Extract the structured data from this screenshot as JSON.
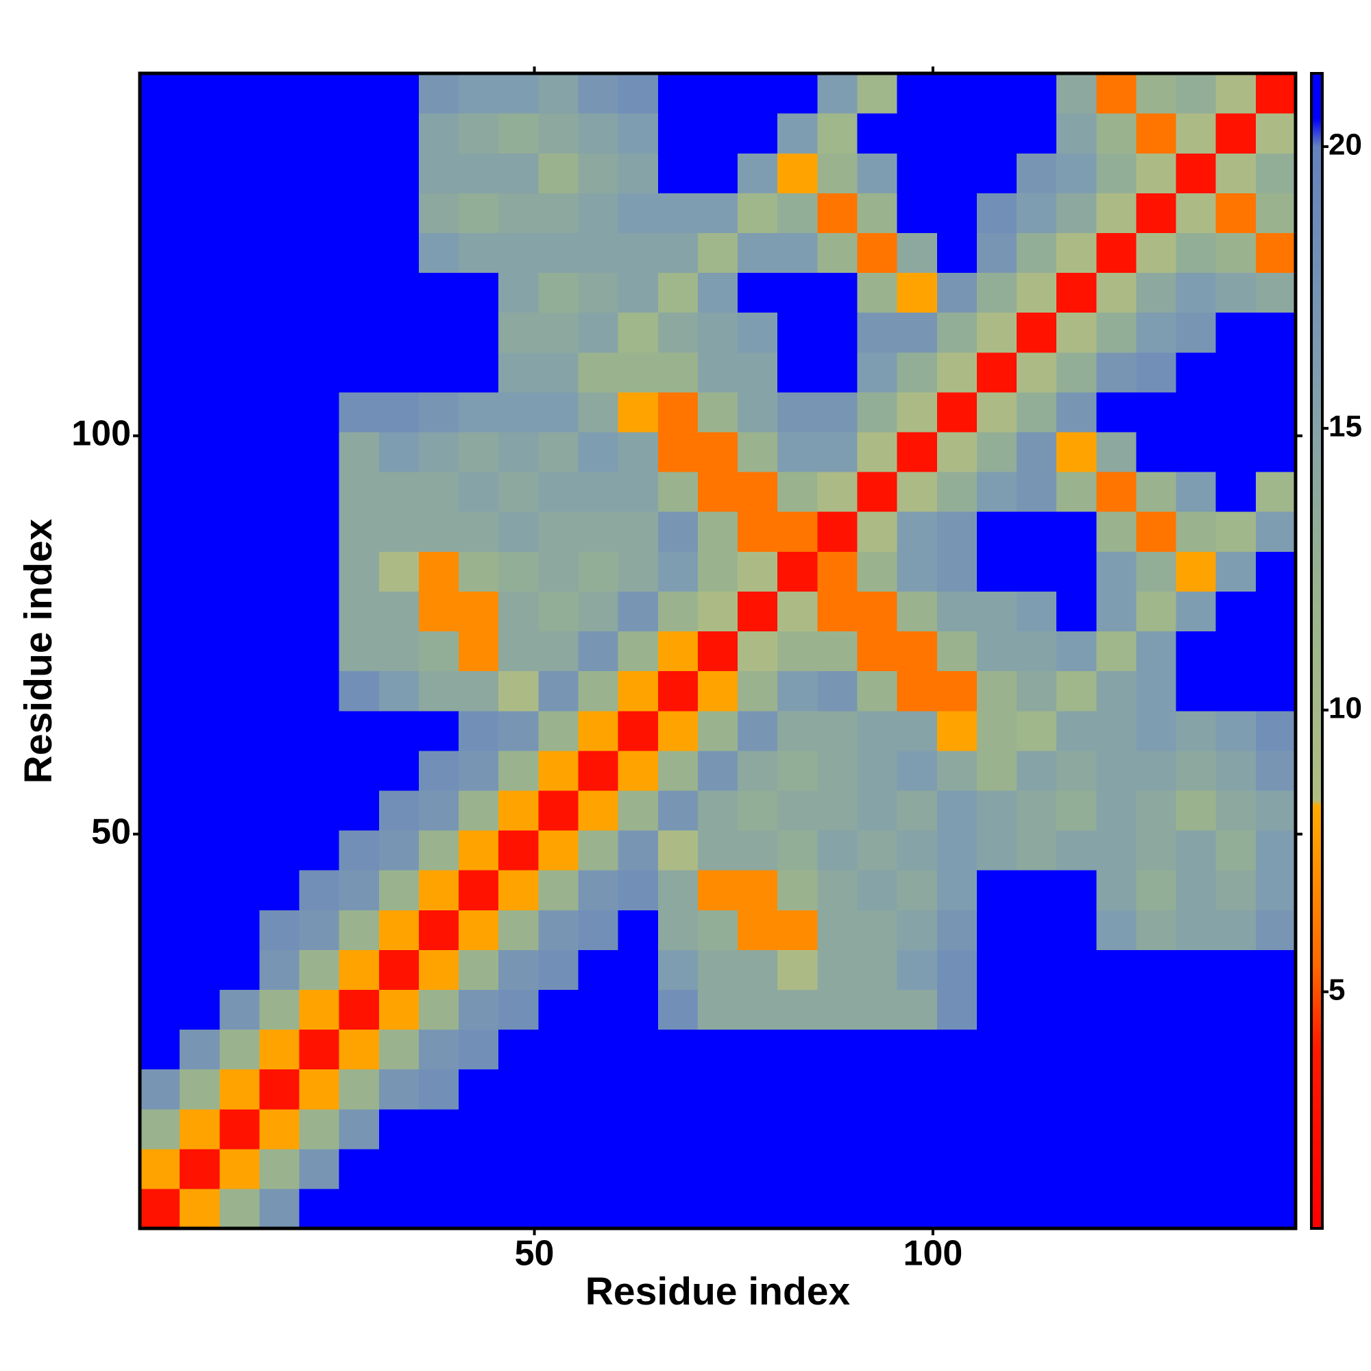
{
  "chart_data": {
    "type": "heatmap",
    "x_label": "Residue index",
    "y_label": "Residue index",
    "x": [
      3,
      8,
      13,
      18,
      23,
      28,
      33,
      38,
      43,
      48,
      53,
      58,
      63,
      68,
      73,
      78,
      83,
      88,
      93,
      98,
      103,
      108,
      113,
      118,
      123,
      128,
      133,
      138,
      143
    ],
    "y": [
      3,
      8,
      13,
      18,
      23,
      28,
      33,
      38,
      43,
      48,
      53,
      58,
      63,
      68,
      73,
      78,
      83,
      88,
      93,
      98,
      103,
      108,
      113,
      118,
      123,
      128,
      133,
      138,
      143
    ],
    "xlim": [
      0.5,
      145.5
    ],
    "ylim": [
      0.5,
      145.5
    ],
    "xticks": [
      50,
      100
    ],
    "yticks": [
      50,
      100
    ],
    "colorbar": {
      "lim": [
        0.8,
        21.3
      ],
      "ticks": [
        5,
        10,
        15,
        20
      ]
    },
    "colorscale": [
      [
        0.8,
        "#ff0000"
      ],
      [
        4,
        "#ff1a00"
      ],
      [
        5.5,
        "#ff6a00"
      ],
      [
        8.3,
        "#ffaa00"
      ],
      [
        8.4,
        "#b0bd84"
      ],
      [
        12,
        "#9ab38e"
      ],
      [
        16,
        "#7f9db0"
      ],
      [
        20,
        "#6482bd"
      ],
      [
        20.5,
        "#0000ff"
      ],
      [
        21.3,
        "#0000ff"
      ]
    ],
    "values": [
      [
        3,
        8,
        12,
        17,
        21,
        21,
        21,
        21,
        21,
        21,
        21,
        21,
        21,
        21,
        21,
        21,
        21,
        21,
        21,
        21,
        21,
        21,
        21,
        21,
        21,
        21,
        21,
        21,
        21
      ],
      [
        8,
        3,
        8,
        12,
        17,
        21,
        21,
        21,
        21,
        21,
        21,
        21,
        21,
        21,
        21,
        21,
        21,
        21,
        21,
        21,
        21,
        21,
        21,
        21,
        21,
        21,
        21,
        21,
        21
      ],
      [
        12,
        8,
        3,
        8,
        12,
        17,
        21,
        21,
        21,
        21,
        21,
        21,
        21,
        21,
        21,
        21,
        21,
        21,
        21,
        21,
        21,
        21,
        21,
        21,
        21,
        21,
        21,
        21,
        21
      ],
      [
        17,
        12,
        8,
        3,
        8,
        12,
        17,
        18,
        21,
        21,
        21,
        21,
        21,
        21,
        21,
        21,
        21,
        21,
        21,
        21,
        21,
        21,
        21,
        21,
        21,
        21,
        21,
        21,
        21
      ],
      [
        21,
        17,
        12,
        8,
        3,
        8,
        12,
        17,
        18,
        21,
        21,
        21,
        21,
        21,
        21,
        21,
        21,
        21,
        21,
        21,
        21,
        21,
        21,
        21,
        21,
        21,
        21,
        21,
        21
      ],
      [
        21,
        21,
        17,
        12,
        8,
        3,
        8,
        12,
        17,
        18,
        21,
        21,
        21,
        18,
        14,
        14,
        14,
        14,
        14,
        14,
        18,
        21,
        21,
        21,
        21,
        21,
        21,
        21,
        21
      ],
      [
        21,
        21,
        21,
        17,
        12,
        8,
        3,
        8,
        12,
        17,
        18,
        21,
        21,
        16,
        14,
        14,
        9,
        14,
        14,
        16,
        18,
        21,
        21,
        21,
        21,
        21,
        21,
        21,
        21
      ],
      [
        21,
        21,
        21,
        18,
        17,
        12,
        8,
        3,
        8,
        12,
        17,
        18,
        21,
        14,
        13,
        7,
        7,
        14,
        14,
        15,
        17,
        21,
        21,
        21,
        16,
        14,
        15,
        15,
        17
      ],
      [
        21,
        21,
        21,
        21,
        18,
        17,
        12,
        8,
        3,
        8,
        12,
        17,
        18,
        14,
        7,
        7,
        12,
        14,
        15,
        14,
        16,
        21,
        21,
        21,
        15,
        13,
        15,
        14,
        16
      ],
      [
        21,
        21,
        21,
        21,
        21,
        18,
        17,
        12,
        8,
        3,
        8,
        12,
        17,
        9,
        14,
        14,
        13,
        15,
        14,
        15,
        16,
        15,
        14,
        15,
        15,
        14,
        15,
        13,
        16
      ],
      [
        21,
        21,
        21,
        21,
        21,
        21,
        18,
        17,
        12,
        8,
        3,
        8,
        12,
        17,
        14,
        13,
        14,
        14,
        15,
        14,
        16,
        15,
        14,
        13,
        15,
        14,
        12,
        14,
        15
      ],
      [
        21,
        21,
        21,
        21,
        21,
        21,
        21,
        18,
        17,
        12,
        8,
        3,
        8,
        12,
        17,
        14,
        13,
        14,
        15,
        16,
        14,
        12,
        15,
        14,
        15,
        15,
        14,
        15,
        17
      ],
      [
        21,
        21,
        21,
        21,
        21,
        21,
        21,
        21,
        18,
        17,
        12,
        8,
        3,
        8,
        12,
        17,
        14,
        14,
        15,
        15,
        8,
        12,
        11,
        15,
        15,
        16,
        15,
        16,
        18
      ],
      [
        21,
        21,
        21,
        21,
        21,
        18,
        16,
        14,
        14,
        9,
        17,
        12,
        8,
        3,
        8,
        12,
        16,
        17,
        12,
        6,
        6,
        12,
        14,
        11,
        15,
        16,
        21,
        21,
        21
      ],
      [
        21,
        21,
        21,
        21,
        21,
        14,
        14,
        13,
        7,
        14,
        14,
        17,
        12,
        8,
        3,
        9,
        12,
        12,
        6,
        6,
        12,
        15,
        15,
        16,
        11,
        16,
        21,
        21,
        21
      ],
      [
        21,
        21,
        21,
        21,
        21,
        14,
        14,
        7,
        7,
        14,
        13,
        14,
        17,
        12,
        9,
        3,
        9,
        6,
        6,
        12,
        15,
        15,
        16,
        21,
        16,
        11,
        16,
        21,
        21
      ],
      [
        21,
        21,
        21,
        21,
        21,
        14,
        9,
        7,
        12,
        13,
        14,
        13,
        14,
        16,
        12,
        9,
        3,
        6,
        12,
        16,
        17,
        21,
        21,
        21,
        16,
        13,
        8,
        16,
        21
      ],
      [
        21,
        21,
        21,
        21,
        21,
        14,
        14,
        14,
        14,
        15,
        14,
        14,
        14,
        17,
        12,
        6,
        6,
        3,
        9,
        16,
        17,
        21,
        21,
        21,
        12,
        6,
        12,
        11,
        16
      ],
      [
        21,
        21,
        21,
        21,
        21,
        14,
        14,
        14,
        15,
        14,
        15,
        15,
        15,
        12,
        6,
        6,
        12,
        9,
        3,
        9,
        13,
        16,
        17,
        12,
        6,
        12,
        16,
        21,
        11
      ],
      [
        21,
        21,
        21,
        21,
        21,
        14,
        16,
        15,
        14,
        15,
        14,
        16,
        15,
        6,
        6,
        12,
        16,
        16,
        9,
        3,
        9,
        13,
        17,
        8,
        14,
        21,
        21,
        21,
        21
      ],
      [
        21,
        21,
        21,
        21,
        21,
        18,
        18,
        17,
        16,
        16,
        16,
        14,
        8,
        6,
        12,
        15,
        17,
        17,
        13,
        9,
        3,
        9,
        13,
        17,
        21,
        21,
        21,
        21,
        21
      ],
      [
        21,
        21,
        21,
        21,
        21,
        21,
        21,
        21,
        21,
        15,
        15,
        12,
        12,
        12,
        15,
        15,
        21,
        21,
        16,
        13,
        9,
        3,
        9,
        13,
        17,
        18,
        21,
        21,
        21
      ],
      [
        21,
        21,
        21,
        21,
        21,
        21,
        21,
        21,
        21,
        14,
        14,
        15,
        11,
        14,
        15,
        16,
        21,
        21,
        17,
        17,
        13,
        9,
        3,
        9,
        13,
        16,
        17,
        21,
        21
      ],
      [
        21,
        21,
        21,
        21,
        21,
        21,
        21,
        21,
        21,
        15,
        13,
        14,
        15,
        11,
        16,
        21,
        21,
        21,
        12,
        8,
        17,
        13,
        9,
        3,
        9,
        14,
        16,
        15,
        14
      ],
      [
        21,
        21,
        21,
        21,
        21,
        21,
        21,
        16,
        15,
        15,
        15,
        15,
        15,
        15,
        11,
        16,
        16,
        12,
        6,
        14,
        21,
        17,
        13,
        9,
        3,
        9,
        13,
        12,
        6
      ],
      [
        21,
        21,
        21,
        21,
        21,
        21,
        21,
        14,
        13,
        14,
        14,
        15,
        16,
        16,
        16,
        11,
        13,
        6,
        12,
        21,
        21,
        18,
        16,
        14,
        9,
        3,
        9,
        6,
        12
      ],
      [
        21,
        21,
        21,
        21,
        21,
        21,
        21,
        15,
        15,
        15,
        12,
        14,
        15,
        21,
        21,
        16,
        8,
        12,
        16,
        21,
        21,
        21,
        17,
        16,
        13,
        9,
        3,
        9,
        13
      ],
      [
        21,
        21,
        21,
        21,
        21,
        21,
        21,
        15,
        14,
        13,
        14,
        15,
        16,
        21,
        21,
        21,
        16,
        11,
        21,
        21,
        21,
        21,
        21,
        15,
        12,
        6,
        9,
        3,
        9
      ],
      [
        21,
        21,
        21,
        21,
        21,
        21,
        21,
        17,
        16,
        16,
        15,
        17,
        18,
        21,
        21,
        21,
        21,
        16,
        11,
        21,
        21,
        21,
        21,
        14,
        6,
        12,
        13,
        9,
        3
      ]
    ]
  }
}
